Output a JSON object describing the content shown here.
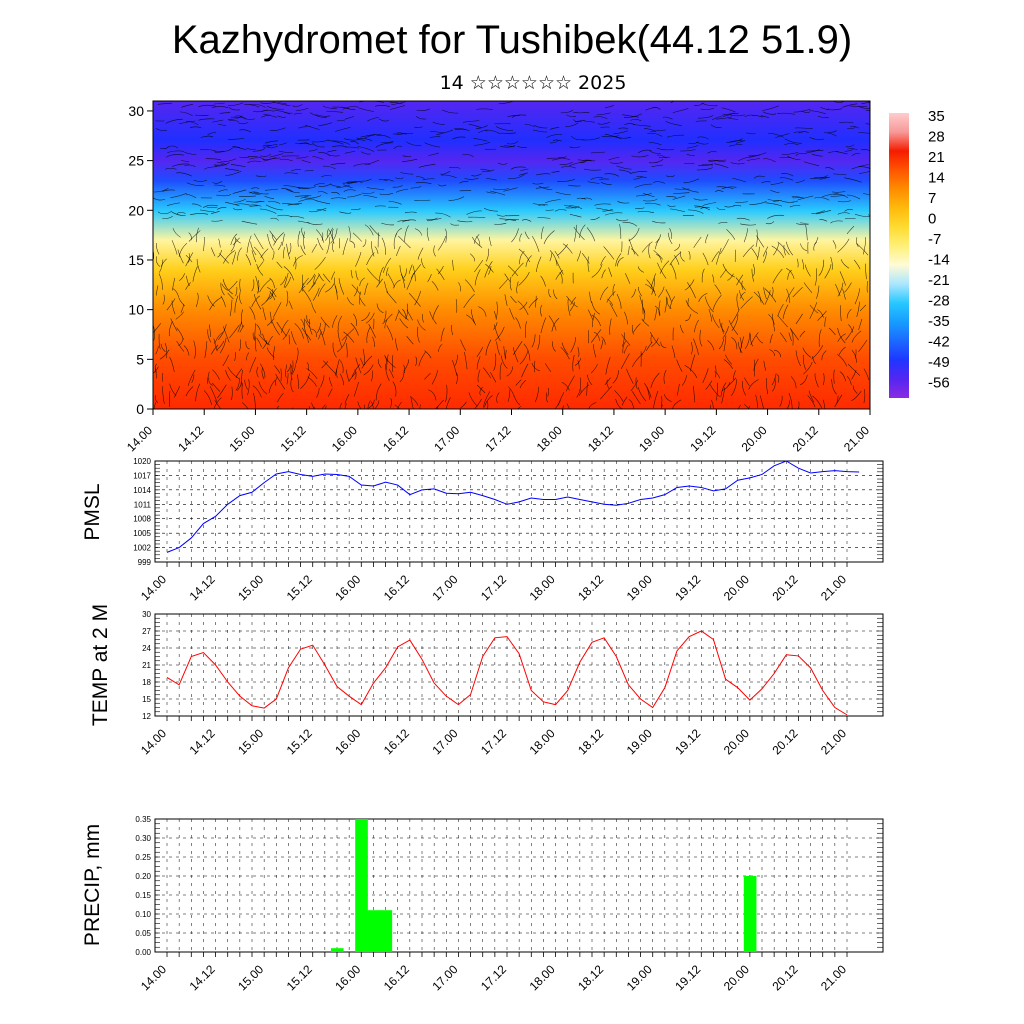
{
  "page": {
    "title": "Kazhydromet for Tushibek(44.12 51.9)",
    "subtitle": "14 ☆☆☆☆☆☆ 2025"
  },
  "colors": {
    "pmsl_line": "#0000ff",
    "temp_line": "#ff0000",
    "precip_bar": "#00ff00",
    "grid": "#000000"
  },
  "chart_data": [
    {
      "id": "cross_section",
      "type": "heatmap",
      "ylim": [
        0,
        31
      ],
      "yticks": [
        0,
        5,
        10,
        15,
        20,
        25,
        30
      ],
      "x_ticks": [
        "14.00",
        "14.12",
        "15.00",
        "15.12",
        "16.00",
        "16.12",
        "17.00",
        "17.12",
        "18.00",
        "18.12",
        "19.00",
        "19.12",
        "20.00",
        "20.12",
        "21.00"
      ],
      "colorbar_labels": [
        "35",
        "28",
        "21",
        "14",
        "7",
        "0",
        "-7",
        "-14",
        "-21",
        "-28",
        "-35",
        "-42",
        "-49",
        "-56"
      ],
      "overlay": "wind streamlines / vectors",
      "profile_levels": [
        0,
        5,
        10,
        14,
        17,
        20,
        23,
        25,
        27,
        31
      ],
      "profile_temps": [
        26,
        22,
        14,
        3,
        -10,
        -28,
        -46,
        -56,
        -50,
        -56
      ]
    },
    {
      "id": "pmsl",
      "type": "line",
      "ylabel": "PMSL",
      "ylim": [
        999,
        1020
      ],
      "yticks": [
        999,
        1002,
        1005,
        1008,
        1011,
        1014,
        1017,
        1020
      ],
      "x_ticks": [
        "14.00",
        "14.12",
        "15.00",
        "15.12",
        "16.00",
        "16.12",
        "17.00",
        "17.12",
        "18.00",
        "18.12",
        "19.00",
        "19.12",
        "20.00",
        "20.12",
        "21.00"
      ],
      "step_hours": 3,
      "values": [
        1001.0,
        1002.0,
        1004.0,
        1007.0,
        1008.5,
        1011.0,
        1012.8,
        1013.5,
        1015.5,
        1017.3,
        1017.8,
        1017.2,
        1016.8,
        1017.3,
        1017.2,
        1016.8,
        1015.0,
        1014.8,
        1015.6,
        1015.0,
        1013.0,
        1014.0,
        1014.2,
        1013.3,
        1013.2,
        1013.5,
        1012.8,
        1012.0,
        1011.0,
        1011.5,
        1012.3,
        1012.0,
        1012.0,
        1012.5,
        1012.0,
        1011.5,
        1011.0,
        1010.8,
        1011.2,
        1012.0,
        1012.3,
        1013.0,
        1014.5,
        1014.8,
        1014.5,
        1013.8,
        1014.2,
        1016.0,
        1016.5,
        1017.2,
        1019.0,
        1020.0,
        1018.5,
        1017.5,
        1017.8,
        1018.0,
        1017.8,
        1017.7
      ]
    },
    {
      "id": "temp",
      "type": "line",
      "ylabel": "TEMP at 2 M",
      "ylim": [
        12,
        30
      ],
      "yticks": [
        12,
        15,
        18,
        21,
        24,
        27,
        30
      ],
      "x_ticks": [
        "14.00",
        "14.12",
        "15.00",
        "15.12",
        "16.00",
        "16.12",
        "17.00",
        "17.12",
        "18.00",
        "18.12",
        "19.00",
        "19.12",
        "20.00",
        "20.12",
        "21.00"
      ],
      "step_hours": 3,
      "values": [
        18.8,
        17.5,
        22.5,
        23.2,
        21.0,
        18.0,
        15.5,
        13.8,
        13.4,
        15.0,
        20.5,
        23.8,
        24.5,
        21.0,
        17.2,
        15.5,
        14.0,
        17.8,
        20.5,
        24.2,
        25.4,
        22.0,
        17.8,
        15.5,
        14.0,
        15.8,
        22.5,
        25.8,
        26.0,
        23.0,
        16.5,
        14.5,
        14.0,
        16.5,
        21.5,
        25.0,
        25.8,
        22.5,
        17.5,
        15.0,
        13.5,
        17.0,
        23.5,
        26.0,
        27.0,
        25.5,
        18.5,
        17.0,
        14.8,
        16.8,
        19.5,
        22.8,
        22.6,
        20.5,
        16.5,
        13.5,
        12.2
      ]
    },
    {
      "id": "precip",
      "type": "bar",
      "ylabel": "PRECIP, mm",
      "ylim": [
        0,
        0.35
      ],
      "yticks": [
        "0.00",
        "0.05",
        "0.10",
        "0.15",
        "0.20",
        "0.25",
        "0.30",
        "0.35"
      ],
      "x_ticks": [
        "14.00",
        "14.12",
        "15.00",
        "15.12",
        "16.00",
        "16.12",
        "17.00",
        "17.12",
        "18.00",
        "18.12",
        "19.00",
        "19.12",
        "20.00",
        "20.12",
        "21.00"
      ],
      "bars": [
        {
          "hour": 42,
          "value": 0.01
        },
        {
          "hour": 48,
          "value": 0.35
        },
        {
          "hour": 51,
          "value": 0.11
        },
        {
          "hour": 54,
          "value": 0.11
        },
        {
          "hour": 144,
          "value": 0.2
        }
      ]
    }
  ]
}
